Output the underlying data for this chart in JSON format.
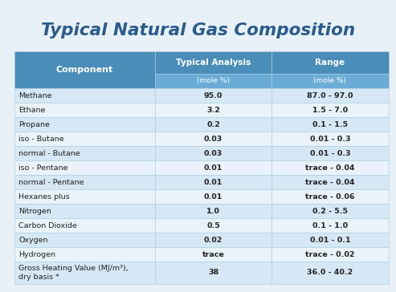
{
  "title": "Typical Natural Gas Composition",
  "col_headers": [
    "Component",
    "Typical Analysis",
    "Range"
  ],
  "col_subheaders": [
    "",
    "(mole %)",
    "(mole %)"
  ],
  "rows": [
    [
      "Methane",
      "95.0",
      "87.0 - 97.0"
    ],
    [
      "Ethane",
      "3.2",
      "1.5 - 7.0"
    ],
    [
      "Propane",
      "0.2",
      "0.1 - 1.5"
    ],
    [
      "iso - Butane",
      "0.03",
      "0.01 - 0.3"
    ],
    [
      "normal - Butane",
      "0.03",
      "0.01 - 0.3"
    ],
    [
      "iso - Pentane",
      "0.01",
      "trace - 0.04"
    ],
    [
      "normal - Pentane",
      "0.01",
      "trace - 0.04"
    ],
    [
      "Hexanes plus",
      "0.01",
      "trace - 0.06"
    ],
    [
      "Nitrogen",
      "1.0",
      "0.2 - 5.5"
    ],
    [
      "Carbon Dioxide",
      "0.5",
      "0.1 - 1.0"
    ],
    [
      "Oxygen",
      "0.02",
      "0.01 - 0.1"
    ],
    [
      "Hydrogen",
      "trace",
      "trace - 0.02"
    ],
    [
      "Gross Heating Value (MJ/m³),\ndry basis *",
      "38",
      "36.0 - 40.2"
    ]
  ],
  "header_bg": "#4a8db8",
  "header_text": "#ffffff",
  "subheader_bg": "#6aacd6",
  "row_even_bg": "#d6e8f5",
  "row_odd_bg": "#eaf3fb",
  "row_text": "#222222",
  "title_color": "#2a5c8c",
  "bg_color": "#e8f0f8",
  "border_color": "#aacce0"
}
